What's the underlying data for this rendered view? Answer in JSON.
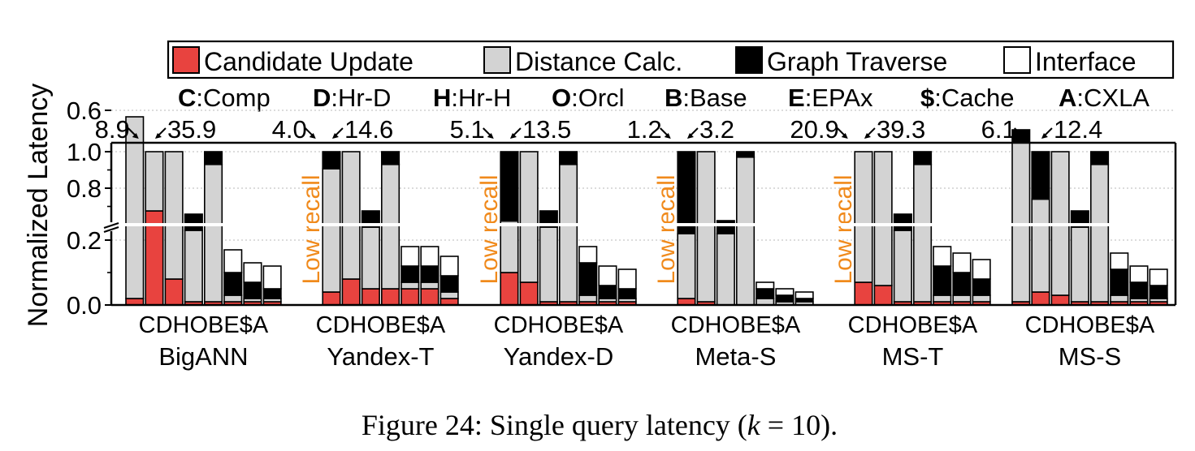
{
  "chart_data": {
    "type": "bar",
    "stacked": true,
    "ylabel": "Normalized Latency",
    "y_ticks": [
      "0.0",
      "0.2",
      "0.6",
      "0.8",
      "1.0"
    ],
    "axis_break": "between 0.2 and 0.6",
    "categories": [
      "C",
      "D",
      "H",
      "O",
      "B",
      "E",
      "$",
      "A"
    ],
    "category_label": "CDHOBE$A",
    "components": [
      {
        "name": "Candidate Update",
        "color": "#e8433f"
      },
      {
        "name": "Distance Calc.",
        "color": "#d3d3d3"
      },
      {
        "name": "Graph Traverse",
        "color": "#000000"
      },
      {
        "name": "Interface",
        "color": "#ffffff"
      }
    ],
    "abbreviations": [
      {
        "key": "C",
        "value": ":Comp"
      },
      {
        "key": "D",
        "value": ":Hr-D"
      },
      {
        "key": "H",
        "value": ":Hr-H"
      },
      {
        "key": "O",
        "value": ":Orcl"
      },
      {
        "key": "B",
        "value": ":Base"
      },
      {
        "key": "E",
        "value": ":EPAx"
      },
      {
        "key": "$",
        "value": ":Cache"
      },
      {
        "key": "A",
        "value": ":CXLA"
      }
    ],
    "groups": [
      {
        "name": "BigANN",
        "top_left_value": "8.9",
        "top_right_value": "35.9",
        "annotation": "",
        "stacks": [
          [
            0.02,
            0.56,
            0.0,
            0.0
          ],
          [
            0.29,
            0.71,
            0.0,
            0.0
          ],
          [
            0.08,
            0.92,
            0.0,
            0.0
          ],
          [
            0.01,
            0.22,
            0.05,
            0.0
          ],
          [
            0.01,
            0.92,
            0.07,
            0.0
          ],
          [
            0.01,
            0.02,
            0.07,
            0.07
          ],
          [
            0.01,
            0.01,
            0.05,
            0.06
          ],
          [
            0.01,
            0.01,
            0.03,
            0.07
          ]
        ]
      },
      {
        "name": "Yandex-T",
        "top_left_value": "4.0",
        "top_right_value": "14.6",
        "annotation": "Low recall",
        "stacks": [
          null,
          [
            0.04,
            0.38,
            0.58,
            0.0
          ],
          [
            0.08,
            0.92,
            0.0,
            0.0
          ],
          [
            0.05,
            0.19,
            0.05,
            0.0
          ],
          [
            0.05,
            0.88,
            0.07,
            0.0
          ],
          [
            0.05,
            0.02,
            0.05,
            0.06
          ],
          [
            0.05,
            0.02,
            0.05,
            0.06
          ],
          [
            0.02,
            0.02,
            0.05,
            0.06
          ]
        ]
      },
      {
        "name": "Yandex-D",
        "top_left_value": "5.1",
        "top_right_value": "13.5",
        "annotation": "Low recall",
        "stacks": [
          null,
          [
            0.1,
            0.52,
            0.38,
            0.0
          ],
          [
            0.07,
            0.93,
            0.0,
            0.0
          ],
          [
            0.01,
            0.23,
            0.05,
            0.0
          ],
          [
            0.01,
            0.92,
            0.07,
            0.0
          ],
          [
            0.01,
            0.02,
            0.1,
            0.05
          ],
          [
            0.01,
            0.01,
            0.04,
            0.06
          ],
          [
            0.01,
            0.01,
            0.03,
            0.06
          ]
        ]
      },
      {
        "name": "Meta-S",
        "top_left_value": "1.2",
        "top_right_value": "3.2",
        "annotation": "Low recall",
        "stacks": [
          null,
          [
            0.02,
            0.2,
            0.78,
            0.0
          ],
          [
            0.01,
            0.99,
            0.0,
            0.0
          ],
          [
            0.0,
            0.22,
            0.04,
            0.0
          ],
          [
            0.0,
            0.97,
            0.03,
            0.0
          ],
          [
            0.0,
            0.02,
            0.03,
            0.02
          ],
          [
            0.0,
            0.01,
            0.02,
            0.02
          ],
          [
            0.0,
            0.01,
            0.01,
            0.02
          ]
        ]
      },
      {
        "name": "MS-T",
        "top_left_value": "20.9",
        "top_right_value": "39.3",
        "annotation": "Low recall",
        "stacks": [
          null,
          [
            0.07,
            0.93,
            0.0,
            0.0
          ],
          [
            0.06,
            0.94,
            0.0,
            0.0
          ],
          [
            0.01,
            0.22,
            0.05,
            0.0
          ],
          [
            0.01,
            0.92,
            0.07,
            0.0
          ],
          [
            0.01,
            0.02,
            0.09,
            0.06
          ],
          [
            0.01,
            0.02,
            0.07,
            0.06
          ],
          [
            0.01,
            0.02,
            0.05,
            0.06
          ]
        ]
      },
      {
        "name": "MS-S",
        "top_left_value": "6.1",
        "top_right_value": "12.4",
        "annotation": "",
        "stacks": [
          [
            0.01,
            0.49,
            0.04,
            0.0
          ],
          [
            0.04,
            0.7,
            0.26,
            0.0
          ],
          [
            0.03,
            0.97,
            0.0,
            0.0
          ],
          [
            0.01,
            0.23,
            0.05,
            0.0
          ],
          [
            0.01,
            0.92,
            0.07,
            0.0
          ],
          [
            0.01,
            0.02,
            0.08,
            0.05
          ],
          [
            0.01,
            0.01,
            0.05,
            0.05
          ],
          [
            0.01,
            0.01,
            0.04,
            0.05
          ]
        ]
      }
    ]
  },
  "caption": {
    "prefix": "Figure 24: Single query latency (",
    "k": "k",
    "suffix": " = 10)."
  }
}
